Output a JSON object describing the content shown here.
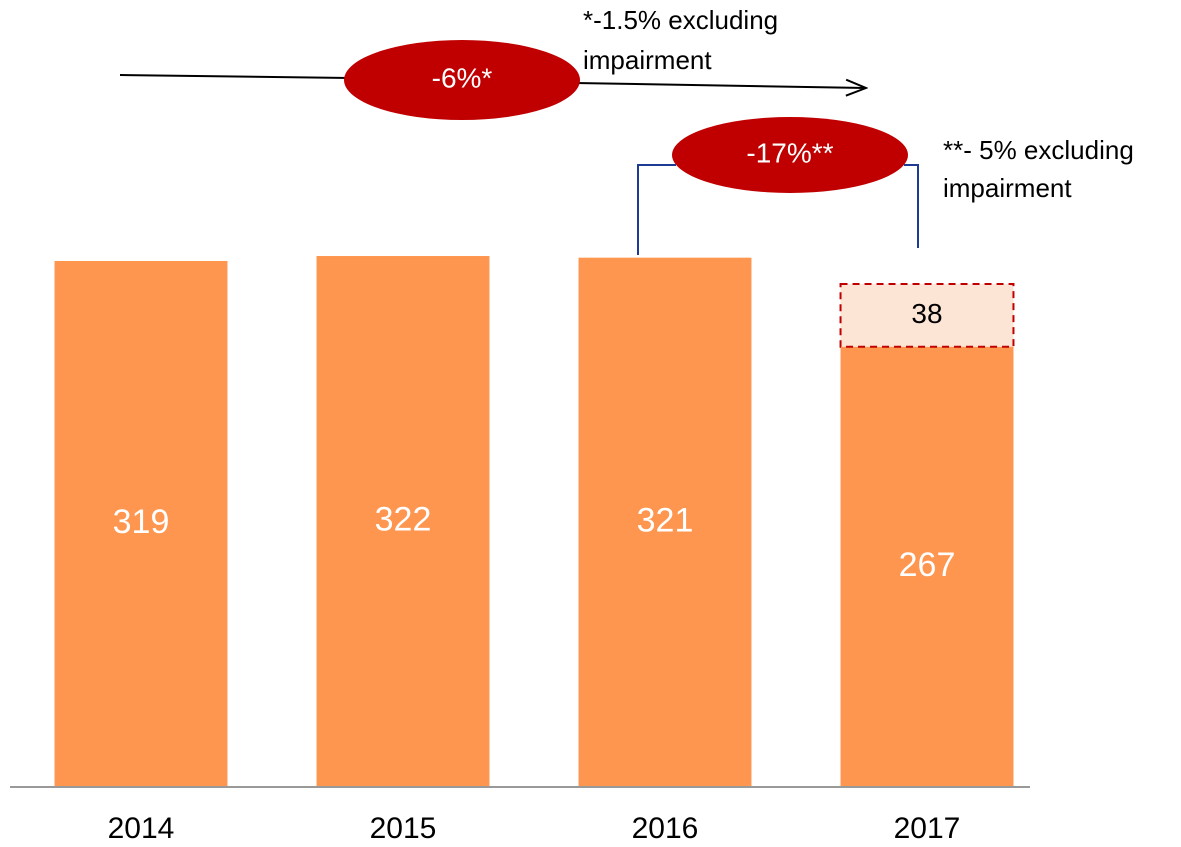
{
  "chart_data": {
    "type": "stacked_bar",
    "categories": [
      "2014",
      "2015",
      "2016",
      "2017"
    ],
    "series": [
      {
        "color": "#ff9650",
        "values": [
          319,
          322,
          321,
          267
        ]
      },
      {
        "color": "#fde5d6",
        "border_color": "#c00000",
        "border_style": "dashed",
        "values": [
          null,
          null,
          null,
          38
        ]
      }
    ],
    "ylim": [
      0,
      453
    ],
    "annotations": {
      "overall_change": "-6%*",
      "overall_note": [
        "*-1.5% excluding",
        "impairment"
      ],
      "last_change": "-17%**",
      "last_note": [
        "**- 5% excluding",
        "impairment"
      ]
    }
  }
}
